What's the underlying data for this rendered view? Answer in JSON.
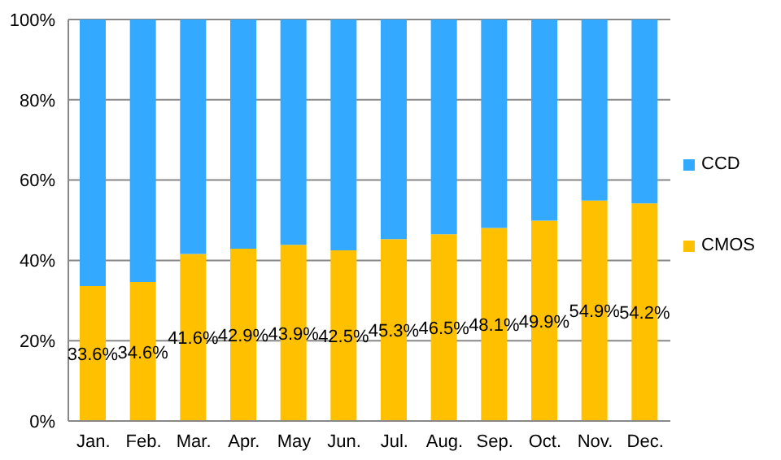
{
  "chart_data": {
    "type": "bar",
    "stacked": true,
    "categories": [
      "Jan.",
      "Feb.",
      "Mar.",
      "Apr.",
      "May",
      "Jun.",
      "Jul.",
      "Aug.",
      "Sep.",
      "Oct.",
      "Nov.",
      "Dec."
    ],
    "series": [
      {
        "name": "CMOS",
        "color": "#ffc000",
        "values": [
          33.6,
          34.6,
          41.6,
          42.9,
          43.9,
          42.5,
          45.3,
          46.5,
          48.1,
          49.9,
          54.9,
          54.2
        ],
        "value_labels": [
          "33.6%",
          "34.6%",
          "41.6%",
          "42.9%",
          "43.9%",
          "42.5%",
          "45.3%",
          "46.5%",
          "48.1%",
          "49.9%",
          "54.9%",
          "54.2%"
        ]
      },
      {
        "name": "CCD",
        "color": "#33aaff",
        "values": [
          66.4,
          65.4,
          58.4,
          57.1,
          56.1,
          57.5,
          54.7,
          53.5,
          51.9,
          50.1,
          45.1,
          45.8
        ]
      }
    ],
    "ylim": [
      0,
      100
    ],
    "yticks": [
      {
        "value": 0,
        "label": "0%"
      },
      {
        "value": 20,
        "label": "20%"
      },
      {
        "value": 40,
        "label": "40%"
      },
      {
        "value": 60,
        "label": "60%"
      },
      {
        "value": 80,
        "label": "80%"
      },
      {
        "value": 100,
        "label": "100%"
      }
    ],
    "grid": "y",
    "legend": "right"
  }
}
